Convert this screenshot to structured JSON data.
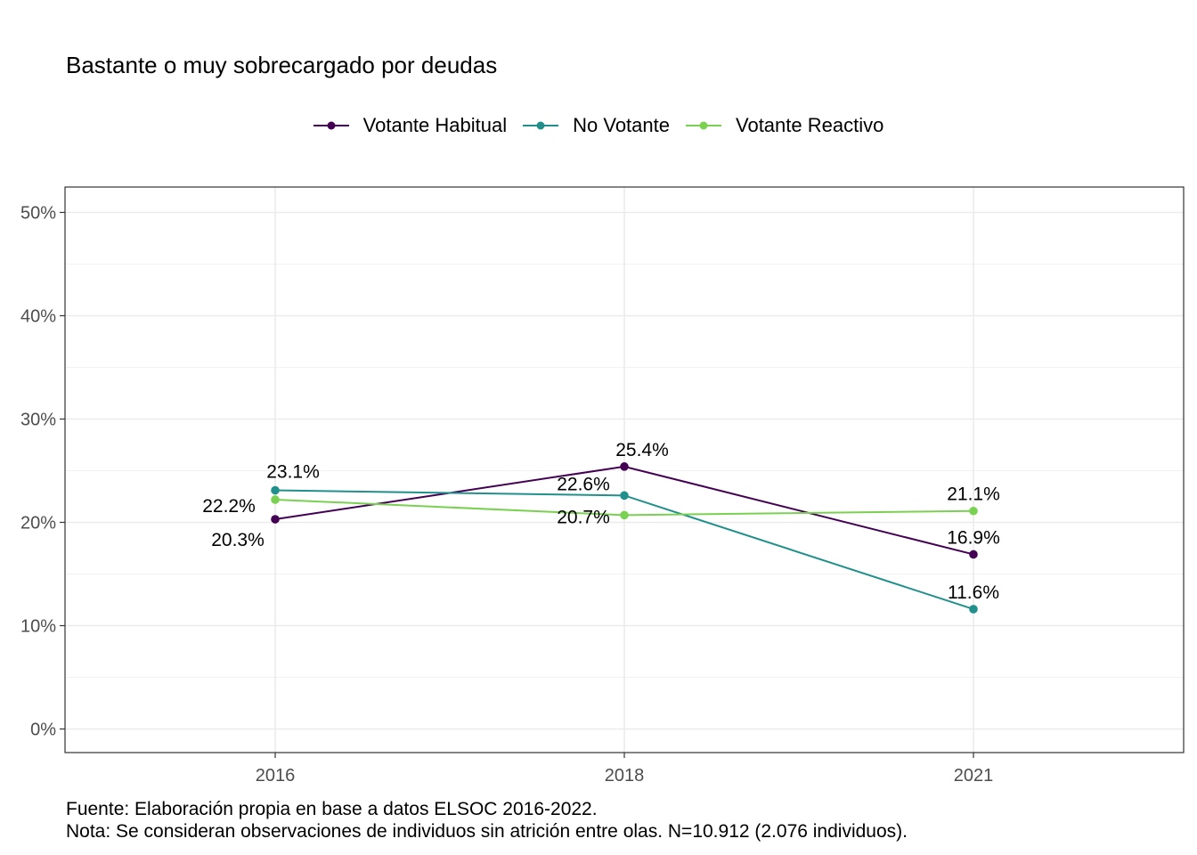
{
  "chart_data": {
    "type": "line",
    "title": "Bastante o muy sobrecargado por deudas",
    "xlabel": "",
    "ylabel": "",
    "x": [
      "2016",
      "2018",
      "2021"
    ],
    "ylim": [
      0,
      50
    ],
    "y_ticks": [
      "0%",
      "10%",
      "20%",
      "30%",
      "40%",
      "50%"
    ],
    "grid": true,
    "legend_position": "top",
    "series": [
      {
        "name": "Votante Habitual",
        "color": "#440154",
        "values": [
          20.3,
          25.4,
          16.9
        ],
        "labels": [
          "20.3%",
          "25.4%",
          "16.9%"
        ]
      },
      {
        "name": "No Votante",
        "color": "#21908C",
        "values": [
          23.1,
          22.6,
          11.6
        ],
        "labels": [
          "23.1%",
          "22.6%",
          "11.6%"
        ]
      },
      {
        "name": "Votante Reactivo",
        "color": "#7AD151",
        "values": [
          22.2,
          20.7,
          21.1
        ],
        "labels": [
          "22.2%",
          "20.7%",
          "21.1%"
        ]
      }
    ]
  },
  "caption": {
    "line1": "Fuente: Elaboración propia en base a datos ELSOC 2016-2022.",
    "line2": "Nota: Se consideran observaciones de individuos sin atrición entre olas. N=10.912 (2.076 individuos)."
  }
}
